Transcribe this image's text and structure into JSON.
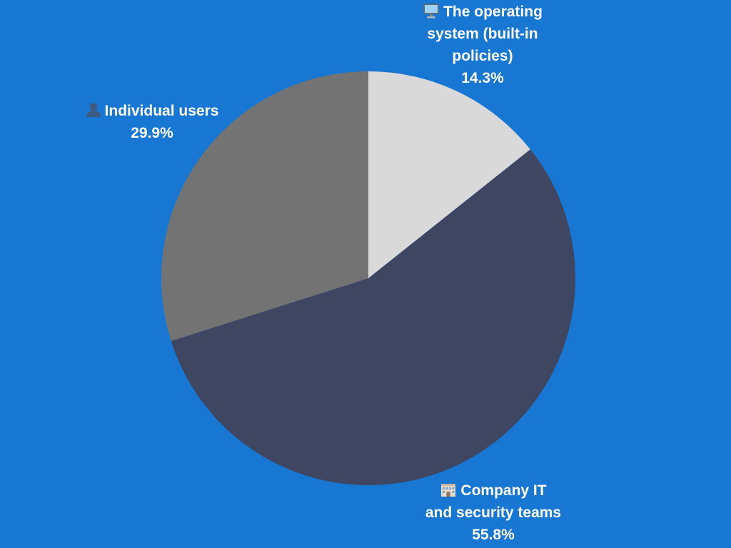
{
  "colors": {
    "background": "#1777D3",
    "label_text": "#FFFFFF"
  },
  "chart_data": {
    "type": "pie",
    "title": "",
    "start_angle_deg": 0,
    "direction": "clockwise",
    "slices": [
      {
        "label_lines": [
          "The operating",
          "system (built-in",
          "policies)"
        ],
        "icon": "desktop-computer-icon",
        "value": 14.3,
        "value_label": "14.3%",
        "color": "#D9D9D9"
      },
      {
        "label_lines": [
          "Company IT",
          "and security teams"
        ],
        "icon": "office-building-icon",
        "value": 55.8,
        "value_label": "55.8%",
        "color": "#3E4661"
      },
      {
        "label_lines": [
          "Individual users"
        ],
        "icon": "user-silhouette-icon",
        "value": 29.9,
        "value_label": "29.9%",
        "color": "#737373"
      }
    ]
  }
}
